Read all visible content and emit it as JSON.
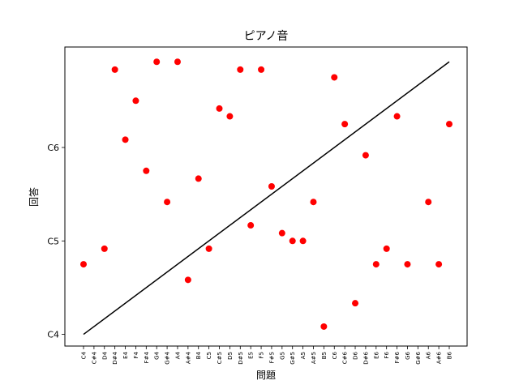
{
  "chart_data": {
    "type": "scatter",
    "title": "ピアノ音",
    "xlabel": "問題",
    "ylabel": "回答",
    "grid": false,
    "x_categories": [
      "C4",
      "C#4",
      "D4",
      "D#4",
      "E4",
      "F4",
      "F#4",
      "G4",
      "G#4",
      "A4",
      "A#4",
      "B4",
      "C5",
      "C#5",
      "D5",
      "D#5",
      "E5",
      "F5",
      "F#5",
      "G5",
      "G#5",
      "A5",
      "A#5",
      "B5",
      "C6",
      "C#6",
      "D6",
      "D#6",
      "E6",
      "F6",
      "F#6",
      "G6",
      "G#6",
      "A6",
      "A#6",
      "B6"
    ],
    "y_ticks": [
      {
        "label": "C4",
        "value": 0
      },
      {
        "label": "C5",
        "value": 12
      },
      {
        "label": "C6",
        "value": 24
      }
    ],
    "ylim": [
      -1.5,
      36.9
    ],
    "points": [
      {
        "x": "C4",
        "y": 9
      },
      {
        "x": "D4",
        "y": 11
      },
      {
        "x": "D#4",
        "y": 34
      },
      {
        "x": "E4",
        "y": 25
      },
      {
        "x": "F4",
        "y": 30
      },
      {
        "x": "F#4",
        "y": 21
      },
      {
        "x": "G4",
        "y": 35
      },
      {
        "x": "G#4",
        "y": 17
      },
      {
        "x": "A4",
        "y": 35
      },
      {
        "x": "A#4",
        "y": 7
      },
      {
        "x": "B4",
        "y": 20
      },
      {
        "x": "C5",
        "y": 11
      },
      {
        "x": "C#5",
        "y": 29
      },
      {
        "x": "D5",
        "y": 28
      },
      {
        "x": "D#5",
        "y": 34
      },
      {
        "x": "E5",
        "y": 14
      },
      {
        "x": "F5",
        "y": 34
      },
      {
        "x": "F#5",
        "y": 19
      },
      {
        "x": "G5",
        "y": 13
      },
      {
        "x": "G#5",
        "y": 12
      },
      {
        "x": "A5",
        "y": 12
      },
      {
        "x": "A#5",
        "y": 17
      },
      {
        "x": "B5",
        "y": 1
      },
      {
        "x": "C6",
        "y": 33
      },
      {
        "x": "C#6",
        "y": 27
      },
      {
        "x": "D6",
        "y": 4
      },
      {
        "x": "D#6",
        "y": 23
      },
      {
        "x": "E6",
        "y": 9
      },
      {
        "x": "F6",
        "y": 11
      },
      {
        "x": "F#6",
        "y": 28
      },
      {
        "x": "G6",
        "y": 9
      },
      {
        "x": "A6",
        "y": 17
      },
      {
        "x": "A#6",
        "y": 9
      },
      {
        "x": "B6",
        "y": 27
      }
    ],
    "reference_line": {
      "from": {
        "x": "C4",
        "y": 0
      },
      "to": {
        "x": "B6",
        "y": 35
      },
      "color": "#000000"
    },
    "marker_color": "#ff0000"
  }
}
